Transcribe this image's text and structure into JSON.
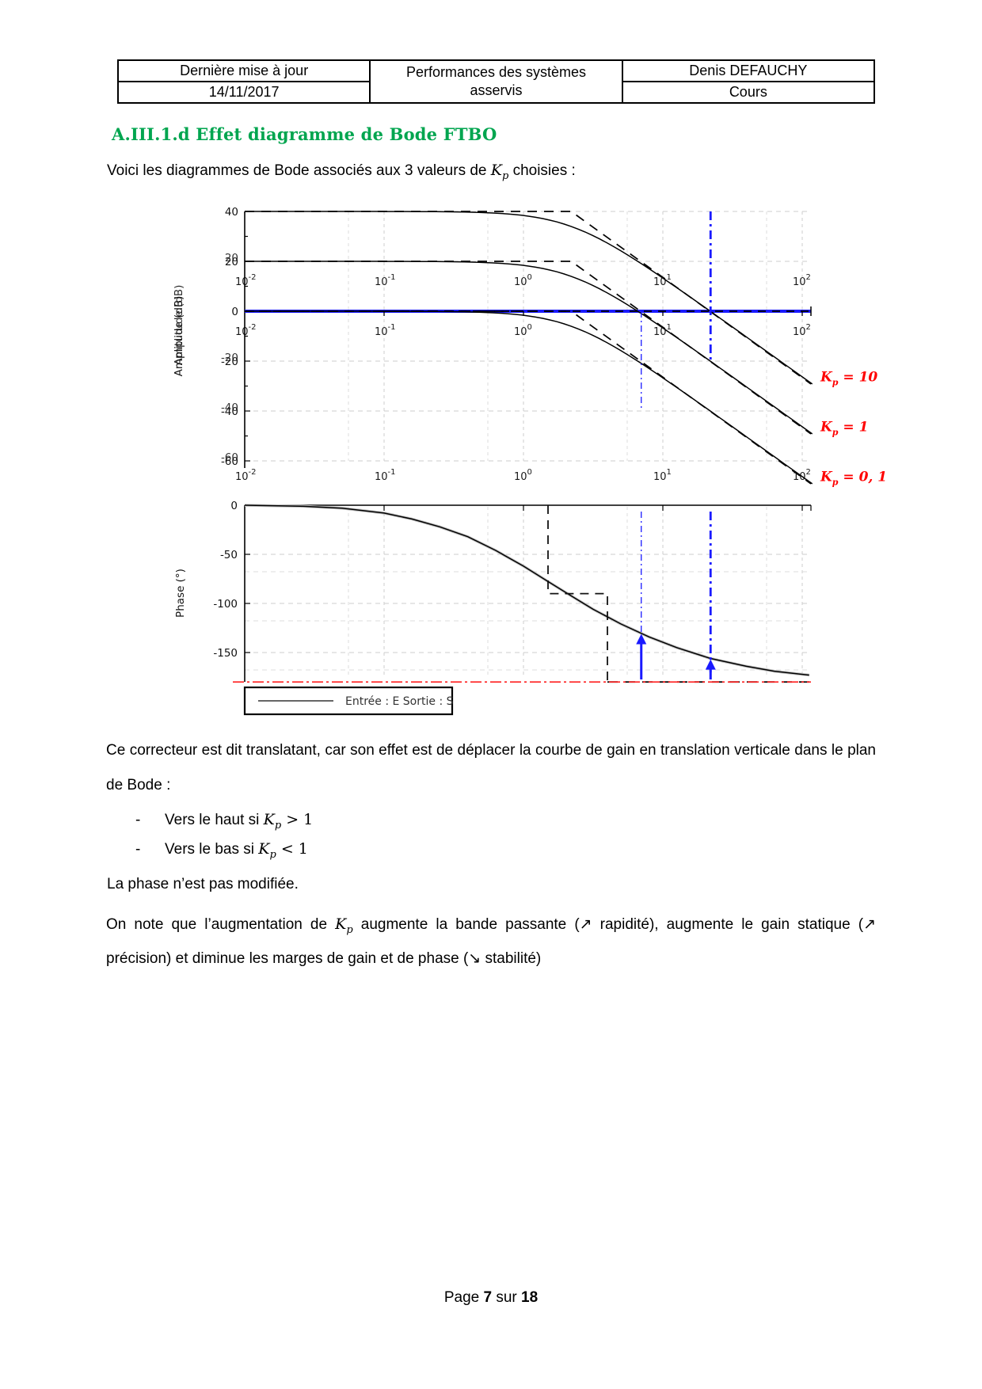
{
  "header": {
    "updated_label": "Dernière mise à jour",
    "updated_date": "14/11/2017",
    "course_title": "Performances des systèmes asservis",
    "author": "Denis DEFAUCHY",
    "doc_type": "Cours"
  },
  "heading": "A.III.1.d Effet diagramme de Bode FTBO",
  "intro": {
    "before": "Voici les diagrammes de Bode associés aux 3 valeurs de ",
    "k": "K",
    "sub": "p",
    "after": " choisies :"
  },
  "body": {
    "p1": "Ce correcteur est dit translatant, car son effet est de déplacer la courbe de gain en translation verticale dans le plan de Bode :",
    "bullets": [
      {
        "dash": "-",
        "before": "Vers le haut si ",
        "k": "K",
        "sub": "p",
        "after": " > 1"
      },
      {
        "dash": "-",
        "before": "Vers le bas si ",
        "k": "K",
        "sub": "p",
        "after": " < 1"
      }
    ],
    "p2": "La phase n’est pas modifiée.",
    "p3": {
      "before": "On note que l’augmentation de ",
      "k": "K",
      "sub": "p",
      "after": " augmente la bande passante (↗ rapidité), augmente le gain statique (↗ précision) et diminue les marges de gain et de phase (↘ stabilité)"
    }
  },
  "footer": {
    "prefix": "Page ",
    "page_num": "7",
    "middle": " sur ",
    "total": "18"
  },
  "chart_data": {
    "type": "line",
    "title": "",
    "x_axis": {
      "scale": "log",
      "min": 0.01,
      "max": 100,
      "tick_base": "10",
      "tick_exponents": [
        "-2",
        "-1",
        "0",
        "1",
        "2"
      ]
    },
    "magnitude": {
      "ylabel": "Amplitude (dB)",
      "yticks": [
        40,
        20,
        0,
        -20,
        -40,
        -60
      ],
      "corner_freq": 2.2,
      "slope_db_per_decade": -40,
      "series": [
        {
          "label_k": "K",
          "label_sub": "p",
          "label_eq": " = 10",
          "low_freq_gain_db": 40,
          "crossover_freq": 22
        },
        {
          "label_k": "K",
          "label_sub": "p",
          "label_eq": " = 1",
          "low_freq_gain_db": 20,
          "crossover_freq": 7
        },
        {
          "label_k": "K",
          "label_sub": "p",
          "label_eq": " = 0, 1",
          "low_freq_gain_db": 0,
          "crossover_freq": 2.2
        }
      ],
      "zero_db_value": 0,
      "crossover_lines": [
        {
          "freq": 7,
          "style": "thin"
        },
        {
          "freq": 22,
          "style": "thick"
        }
      ]
    },
    "phase": {
      "ylabel": "Phase (°)",
      "yticks": [
        0,
        -50,
        -100,
        -150
      ],
      "minus180": -180,
      "curve": {
        "log10w": [
          -2,
          -1.6,
          -1.3,
          -1,
          -0.8,
          -0.6,
          -0.4,
          -0.2,
          0,
          0.18,
          0.35,
          0.5,
          0.7,
          0.9,
          1.1,
          1.34,
          1.6,
          1.8,
          2.05
        ],
        "deg": [
          0,
          -1,
          -3,
          -8,
          -14,
          -22,
          -32,
          -46,
          -62,
          -78,
          -93,
          -106,
          -121,
          -134,
          -145,
          -156,
          -164,
          -169,
          -173
        ]
      },
      "asymptote": {
        "corner1": 1.5,
        "corner2": 4,
        "mid_deg": -90,
        "end_deg": -180
      },
      "margin_arrows": [
        {
          "freq": 7,
          "tip_deg": -131
        },
        {
          "freq": 22,
          "tip_deg": -157
        }
      ],
      "legend_label": "Entrée : E Sortie : S"
    },
    "colors": {
      "curve": "#000000",
      "grid": "#cccccc",
      "grid2": "#dddddd",
      "blue": "#1a1aff",
      "red_line": "#ff2020",
      "kp_label": "#ff0000"
    }
  }
}
